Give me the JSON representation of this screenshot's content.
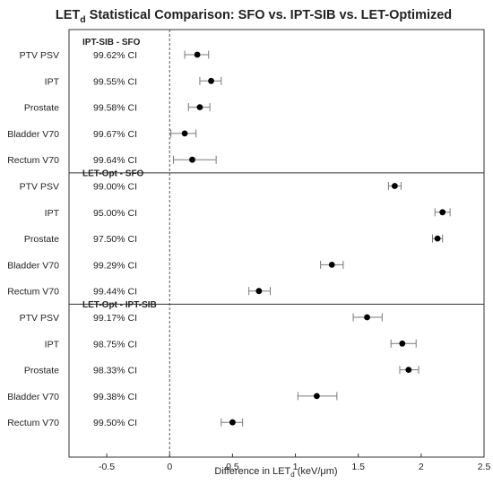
{
  "chart_data": {
    "type": "scatter",
    "title_main": "LET",
    "title_sub": "d",
    "title_rest": " Statistical Comparison: SFO vs. IPT-SIB vs. LET-Optimized",
    "xlabel_pre": "Difference in LET",
    "xlabel_sub": "d",
    "xlabel_post": " (keV/μm)",
    "xlim": [
      -0.8,
      2.5
    ],
    "xticks": [
      -0.5,
      0,
      0.5,
      1,
      1.5,
      2,
      2.5
    ],
    "xtick_labels": [
      "-0.5",
      "0",
      "0.5",
      "1",
      "1.5",
      "2",
      "2.5"
    ],
    "zero_line": 0,
    "groups": [
      {
        "name": "IPT-SIB - SFO",
        "rows": [
          {
            "label": "PTV PSV",
            "ci": "99.62% CI",
            "value": 0.22,
            "low": 0.12,
            "high": 0.31
          },
          {
            "label": "IPT",
            "ci": "99.55% CI",
            "value": 0.33,
            "low": 0.24,
            "high": 0.41
          },
          {
            "label": "Prostate",
            "ci": "99.58% CI",
            "value": 0.24,
            "low": 0.15,
            "high": 0.32
          },
          {
            "label": "Bladder V70",
            "ci": "99.67% CI",
            "value": 0.12,
            "low": 0.01,
            "high": 0.21
          },
          {
            "label": "Rectum V70",
            "ci": "99.64% CI",
            "value": 0.18,
            "low": 0.03,
            "high": 0.37
          }
        ]
      },
      {
        "name": "LET-Opt - SFO",
        "rows": [
          {
            "label": "PTV PSV",
            "ci": "99.00% CI",
            "value": 1.79,
            "low": 1.74,
            "high": 1.84
          },
          {
            "label": "IPT",
            "ci": "95.00% CI",
            "value": 2.17,
            "low": 2.11,
            "high": 2.23
          },
          {
            "label": "Prostate",
            "ci": "97.50% CI",
            "value": 2.13,
            "low": 2.09,
            "high": 2.17
          },
          {
            "label": "Bladder V70",
            "ci": "99.29% CI",
            "value": 1.29,
            "low": 1.2,
            "high": 1.38
          },
          {
            "label": "Rectum V70",
            "ci": "99.44% CI",
            "value": 0.71,
            "low": 0.63,
            "high": 0.8
          }
        ]
      },
      {
        "name": "LET-Opt - IPT-SIB",
        "rows": [
          {
            "label": "PTV PSV",
            "ci": "99.17% CI",
            "value": 1.57,
            "low": 1.46,
            "high": 1.69
          },
          {
            "label": "IPT",
            "ci": "98.75% CI",
            "value": 1.85,
            "low": 1.76,
            "high": 1.96
          },
          {
            "label": "Prostate",
            "ci": "98.33% CI",
            "value": 1.9,
            "low": 1.83,
            "high": 1.98
          },
          {
            "label": "Bladder V70",
            "ci": "99.38% CI",
            "value": 1.17,
            "low": 1.02,
            "high": 1.33
          },
          {
            "label": "Rectum V70",
            "ci": "99.50% CI",
            "value": 0.5,
            "low": 0.41,
            "high": 0.58
          }
        ]
      }
    ],
    "colors": {
      "point": "#000000",
      "errorbar": "#7a7a7a",
      "separator": "#333333",
      "axis": "#333333"
    }
  }
}
